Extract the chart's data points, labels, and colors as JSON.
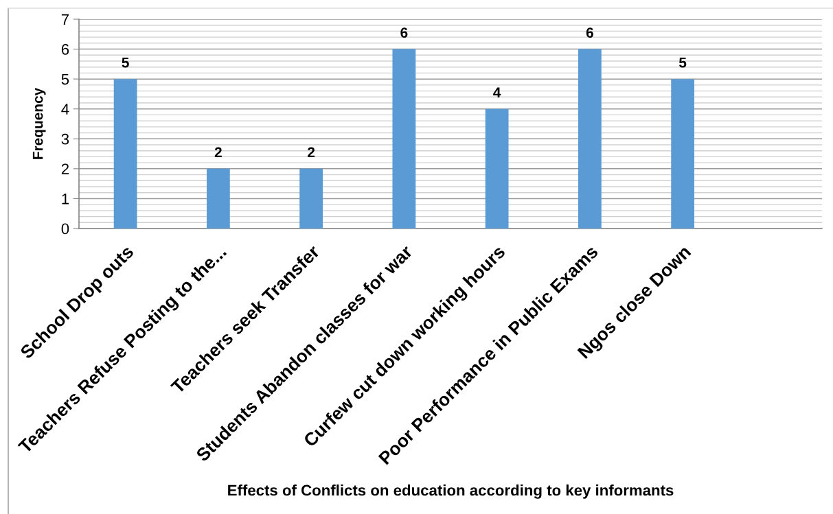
{
  "chart_data": {
    "type": "bar",
    "xlabel": "Effects of Conflicts on education according to key informants",
    "ylabel": "Frequency",
    "categories": [
      "School Drop outs",
      "Teachers Refuse Posting to the...",
      "Teachers seek Transfer",
      "Students Abandon classes for war",
      "Curfew cut down working hours",
      "Poor Performance in Public Exams",
      "Ngos close Down",
      null
    ],
    "values": [
      5,
      2,
      2,
      6,
      4,
      6,
      5,
      null
    ],
    "color": "#5b9bd5",
    "ylim": [
      0,
      7
    ],
    "yticks": [
      0,
      1,
      2,
      3,
      4,
      5,
      6,
      7
    ],
    "grid": "y",
    "data_labels": true
  }
}
